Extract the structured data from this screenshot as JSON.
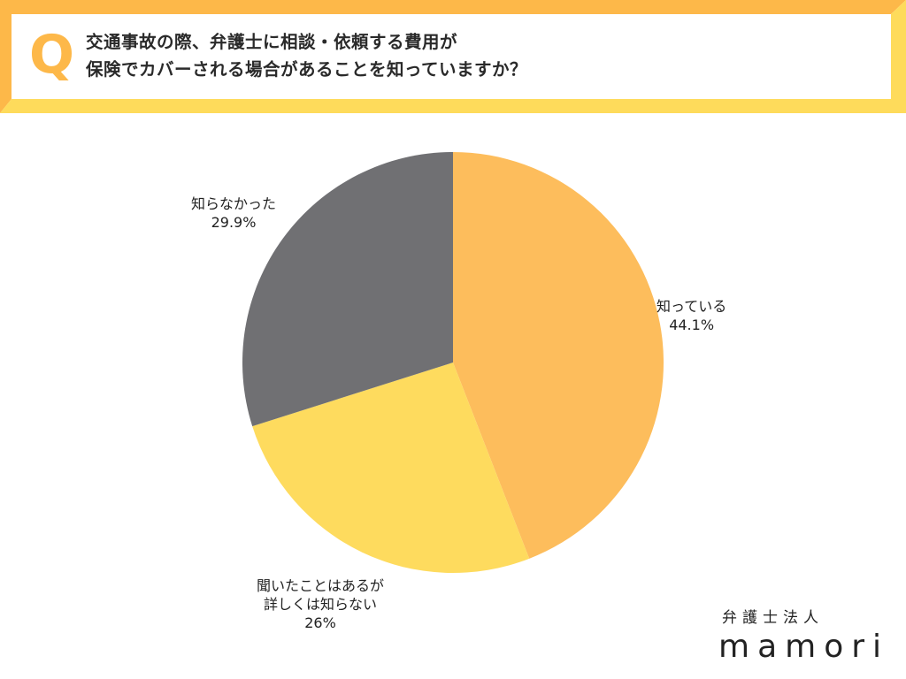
{
  "header": {
    "q_mark": "Q",
    "question_line1": "交通事故の際、弁護士に相談・依頼する費用が",
    "question_line2": "保険でカバーされる場合があることを知っていますか？",
    "colors": {
      "frame_top_left": "#FDB849",
      "frame_bottom_right": "#FEDB5B",
      "q_mark": "#FDB849"
    }
  },
  "labels": {
    "known": {
      "line1": "知っている",
      "line2": "44.1%"
    },
    "heard": {
      "line1": "聞いたことはあるが",
      "line2": "詳しくは知らない",
      "line3": "26%"
    },
    "unknown": {
      "line1": "知らなかった",
      "line2": "29.9%"
    }
  },
  "logo": {
    "subtitle": "弁護士法人",
    "name": "mamori"
  },
  "chart_data": {
    "type": "pie",
    "title": "交通事故の際、弁護士に相談・依頼する費用が保険でカバーされる場合があることを知っていますか？",
    "categories": [
      "知っている",
      "聞いたことはあるが詳しくは知らない",
      "知らなかった"
    ],
    "values": [
      44.1,
      26,
      29.9
    ],
    "unit": "%",
    "colors": [
      "#FDBD5C",
      "#FEDB5E",
      "#707073"
    ],
    "start_angle": "12 o'clock, clockwise",
    "legend": "none (outside labels)",
    "center": [
      512,
      410
    ],
    "radius": 238
  }
}
